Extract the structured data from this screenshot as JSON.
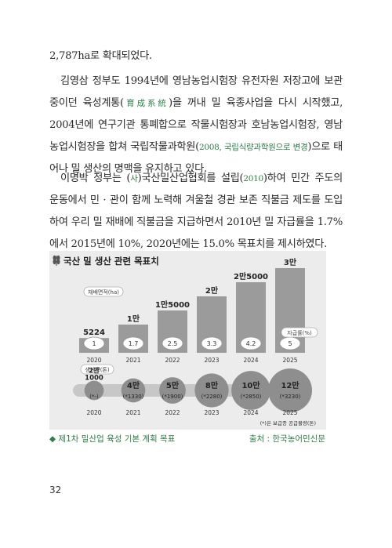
{
  "text": {
    "line1": "2,787ha로 확대되었다.",
    "para2_a": "김영삼 정부도 1994년에 영남농업시험장 유전자원 저장고에 보관 중이던 육성계통(",
    "para2_hl1": "育成系統",
    "para2_b": ")을 꺼내 밀 육종사업을 다시 시작했고, 2004년에 연구기관 통폐합으로 작물시험장과 호남농업시험장, 영남농업시험장을 합쳐 국립작물과학원(",
    "para2_hl2": "2008, 국립식량과학원으로 변경",
    "para2_c": ")으로 태어나 밀 생산의 명맥을 유지하고 있다.",
    "para3_a": "이명박 정부는 (",
    "para3_hl1": "사",
    "para3_b": ")국산밀산업협회를 설립(",
    "para3_hl2": "2010",
    "para3_c": ")하여 민간 주도의 운동에서 민 · 관이 함께 노력해 겨울철 경관 보존 직불금 제도를 도입하여 우리 밀 재배에 직불금을 지급하면서 2010년 밀 자급률을 1.7%에서 2015년에 10%, 2020년에는 15.0% 목표치를 제시하였다."
  },
  "figure": {
    "title": "국산 밀 생산 관련 목표치",
    "caption_left": "◆ 제1차 밀산업 육성 기본 계획 목표",
    "caption_right": "출처 : 한국농어민신문",
    "source_note": "(*)은 보급종 공급물량(톤)",
    "colors": {
      "bar": "#9b9b9b",
      "bar_light": "#c7c7c7",
      "bubble": "#8e8e8e",
      "accent": "#2f7d4a"
    }
  },
  "chart_data": [
    {
      "type": "bar",
      "title": "국산 밀 생산 관련 목표치",
      "ylabel": "재배면적(ha)",
      "categories": [
        "2020",
        "2021",
        "2022",
        "2023",
        "2024",
        "2025"
      ],
      "series": [
        {
          "name": "재배면적(ha)",
          "labels": [
            "5224",
            "1만",
            "1만5000",
            "2만",
            "2만5000",
            "3만"
          ],
          "values": [
            5224,
            10000,
            15000,
            20000,
            25000,
            30000
          ]
        },
        {
          "name": "자급률(%)",
          "labels": [
            "1",
            "1.7",
            "2.5",
            "3.3",
            "4.2",
            "5"
          ],
          "values": [
            1,
            1.7,
            2.5,
            3.3,
            4.2,
            5
          ]
        }
      ]
    },
    {
      "type": "scatter",
      "ylabel": "생산량(톤)",
      "categories": [
        "2020",
        "2021",
        "2022",
        "2023",
        "2024",
        "2025"
      ],
      "series": [
        {
          "name": "생산량(톤)",
          "labels": [
            "2만\n1000",
            "4만",
            "5만",
            "8만",
            "10만",
            "12만"
          ],
          "values": [
            21000,
            40000,
            50000,
            80000,
            100000,
            120000
          ]
        },
        {
          "name": "보급종 공급물량(톤)",
          "labels": [
            "(*-)",
            "(*1330)",
            "(*1900)",
            "(*2280)",
            "(*2850)",
            "(*3230)"
          ],
          "values": [
            null,
            1330,
            1900,
            2280,
            2850,
            3230
          ]
        }
      ]
    }
  ],
  "page_number": "32"
}
